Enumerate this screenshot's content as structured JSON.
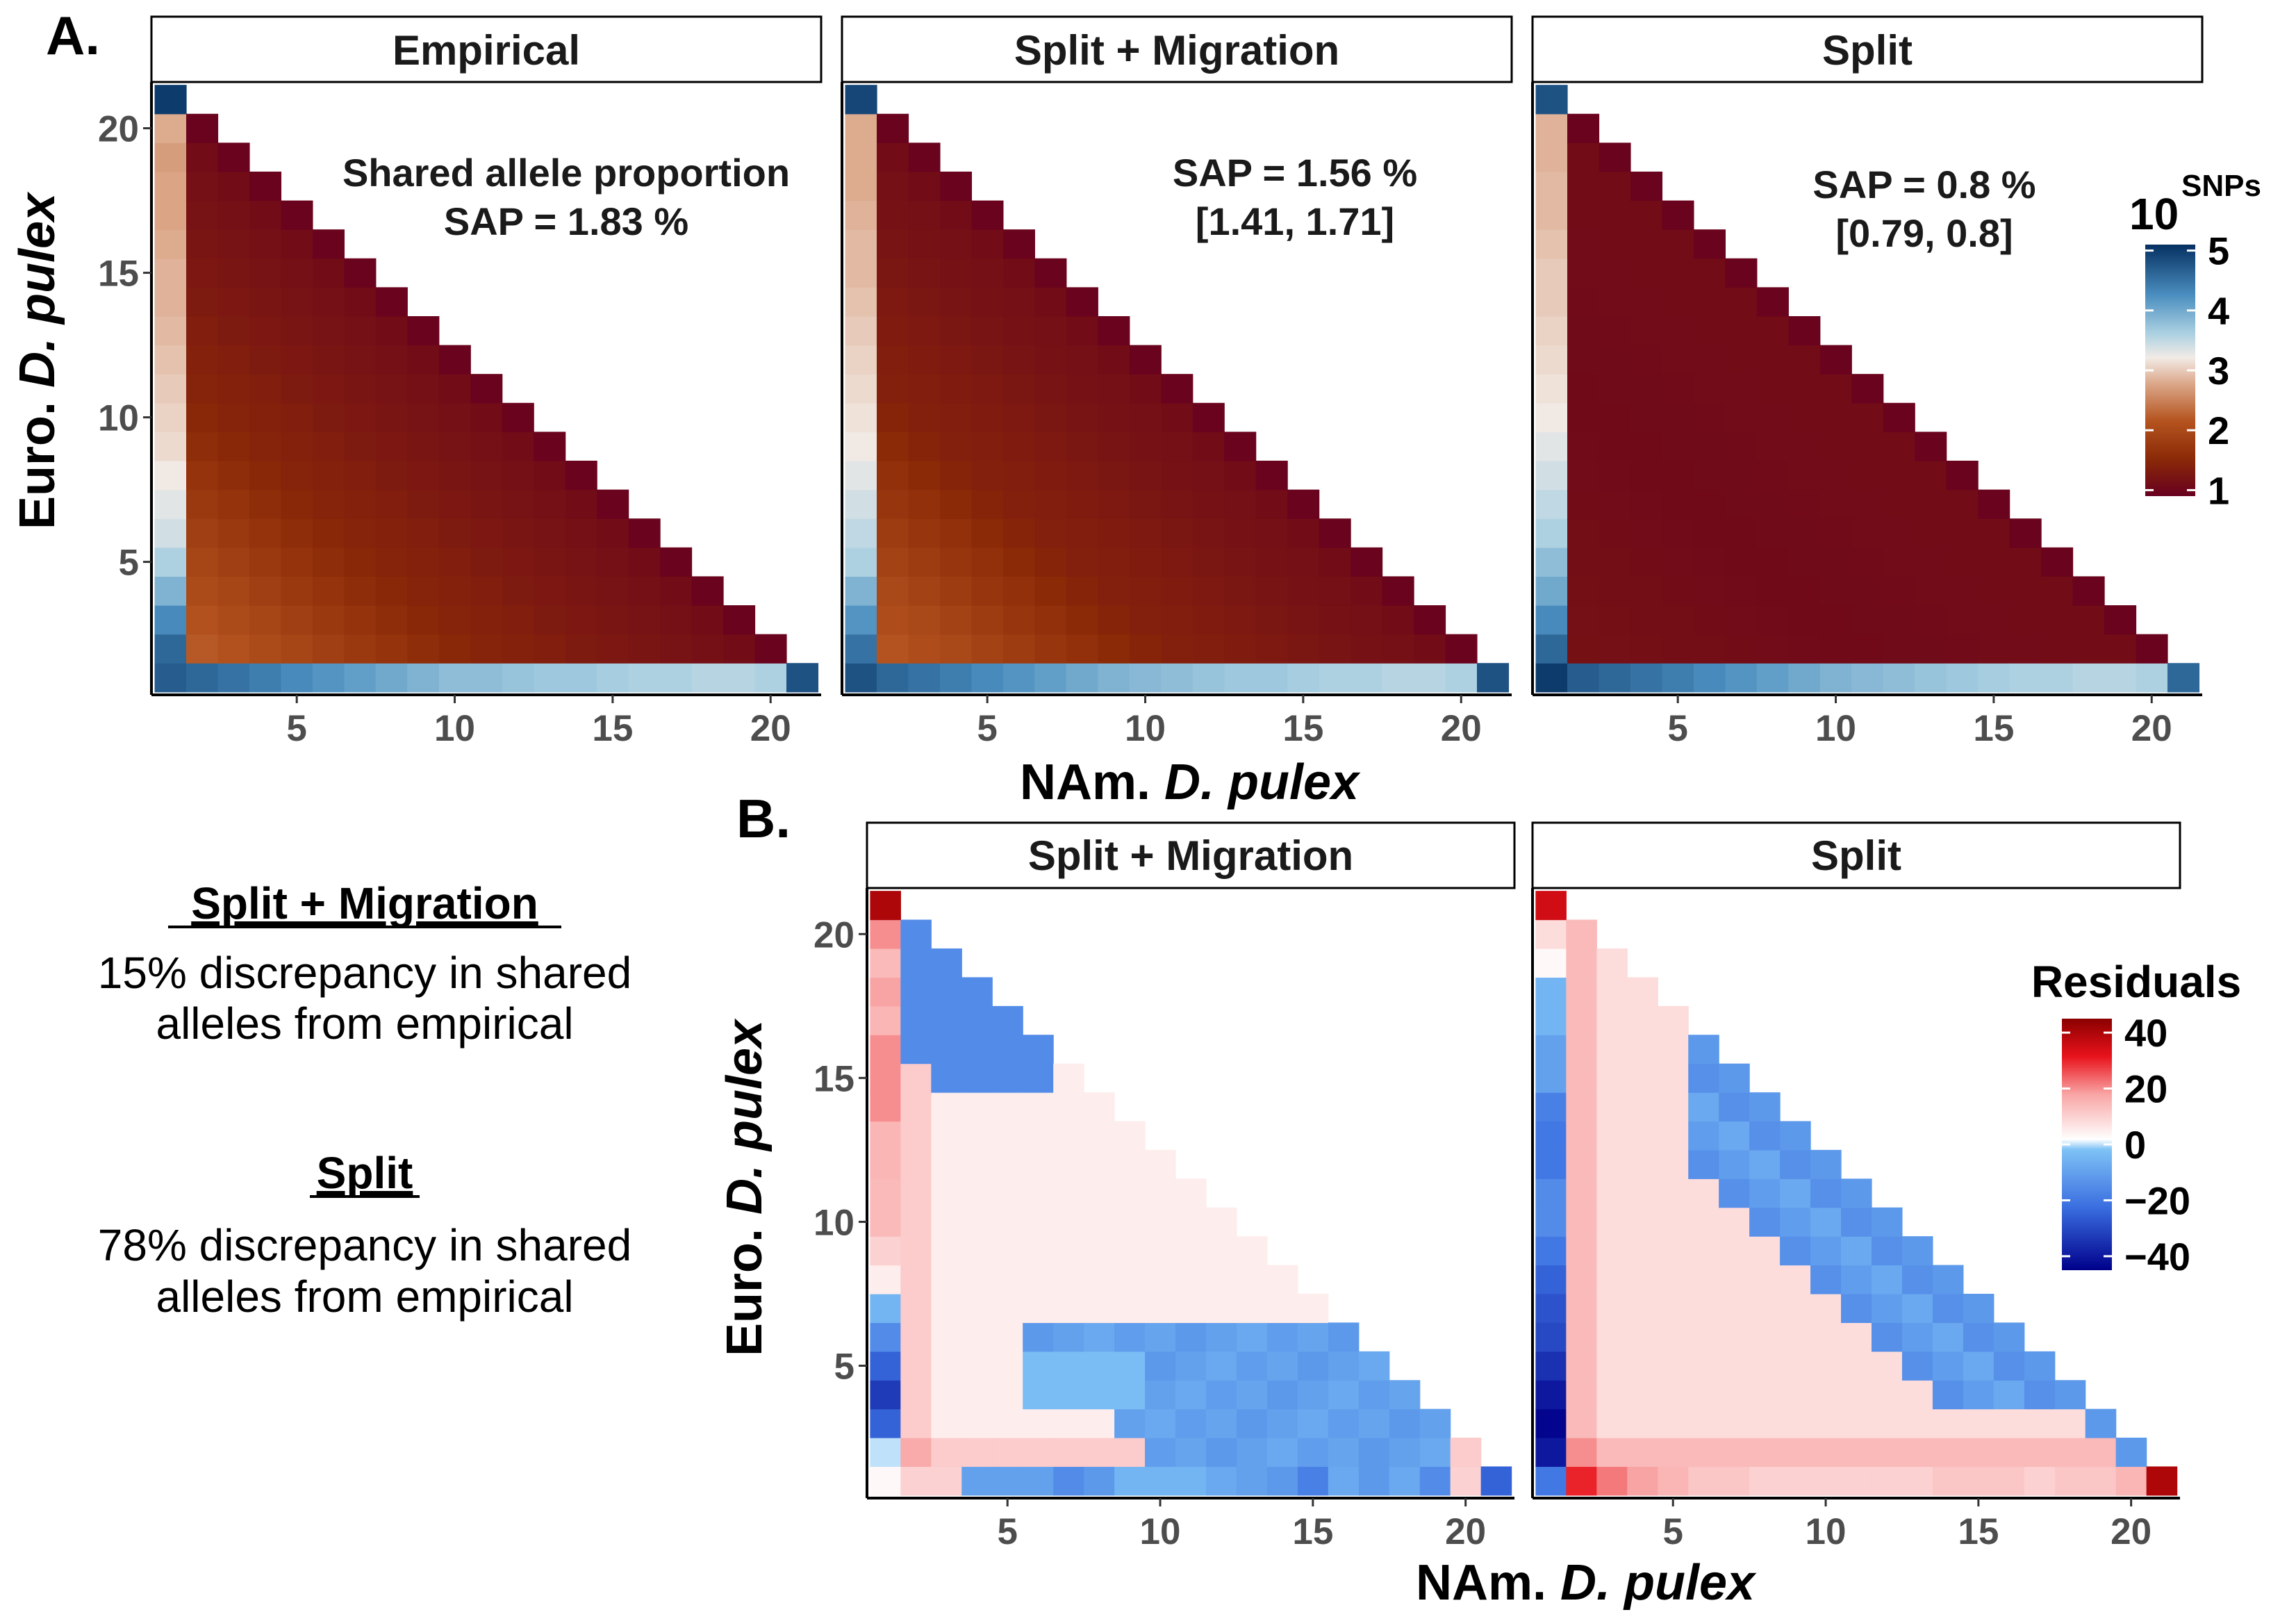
{
  "figure": {
    "panel_a_letter": "A.",
    "panel_b_letter": "B.",
    "x_axis_prefix": "NAm. ",
    "x_axis_italic": "D. pulex",
    "y_axis_prefix": "Euro. ",
    "y_axis_italic": "D. pulex",
    "legend_snp_base": "10",
    "legend_snp_sup": "SNPs",
    "legend_residuals_title": "Residuals"
  },
  "side_text": {
    "block1_heading": "Split + Migration",
    "block1_line1": "15% discrepancy in shared",
    "block1_line2": "alleles from empirical",
    "block2_heading": "Split",
    "block2_line1": "78% discrepancy in shared",
    "block2_line2": "alleles from empirical"
  },
  "chart_data": [
    {
      "type": "heatmap",
      "panel": "A",
      "facet": "Empirical",
      "annotation": [
        "Shared allele proportion",
        "SAP = 1.83 %"
      ],
      "x_range": [
        1,
        21
      ],
      "y_range": [
        1,
        21
      ],
      "x_ticks": [
        5,
        10,
        15,
        20
      ],
      "y_ticks": [
        5,
        10,
        15,
        20
      ],
      "color_scale": "log10 SNP count",
      "values_note": "anchors of log10(SNPs) per cell",
      "col_y1": [
        4.7,
        4.6,
        4.3,
        3.9,
        3.6,
        3.4,
        3.3,
        3.2,
        3.1,
        3.05,
        3.0,
        2.95,
        2.9,
        2.85,
        2.85,
        2.8,
        2.75,
        2.75,
        2.7,
        2.8,
        5.0
      ],
      "row_x1": [
        5.0,
        4.6,
        4.5,
        4.4,
        4.3,
        4.2,
        4.1,
        4.0,
        3.9,
        3.8,
        3.8,
        3.75,
        3.7,
        3.7,
        3.65,
        3.6,
        3.6,
        3.55,
        3.55,
        3.6,
        4.8
      ],
      "interior": {
        "near_axes": 2.2,
        "mid": 1.45,
        "diagonal": 0.95
      }
    },
    {
      "type": "heatmap",
      "panel": "A",
      "facet": "Split + Migration",
      "annotation": [
        "SAP = 1.56 %",
        "[1.41, 1.71]"
      ],
      "x_range": [
        1,
        21
      ],
      "y_range": [
        1,
        21
      ],
      "x_ticks": [
        5,
        10,
        15,
        20
      ],
      "y_ticks": [
        5,
        10,
        15,
        20
      ],
      "color_scale": "log10 SNP count",
      "col_y1": [
        4.8,
        4.5,
        4.2,
        3.9,
        3.6,
        3.5,
        3.4,
        3.3,
        3.2,
        3.15,
        3.1,
        3.05,
        3.0,
        2.95,
        2.9,
        2.9,
        2.85,
        2.8,
        2.8,
        2.8,
        4.9
      ],
      "row_x1": [
        5.0,
        4.6,
        4.5,
        4.4,
        4.3,
        4.2,
        4.1,
        4.0,
        3.9,
        3.85,
        3.8,
        3.75,
        3.7,
        3.7,
        3.65,
        3.6,
        3.6,
        3.55,
        3.55,
        3.6,
        4.8
      ],
      "interior": {
        "near_axes": 2.15,
        "mid": 1.4,
        "diagonal": 0.95
      }
    },
    {
      "type": "heatmap",
      "panel": "A",
      "facet": "Split",
      "annotation": [
        "SAP = 0.8 %",
        "[0.79, 0.8]"
      ],
      "x_range": [
        1,
        21
      ],
      "y_range": [
        1,
        21
      ],
      "x_ticks": [
        5,
        10,
        15,
        20
      ],
      "y_ticks": [
        5,
        10,
        15,
        20
      ],
      "color_scale": "log10 SNP count",
      "col_y1": [
        5.0,
        4.6,
        4.3,
        4.0,
        3.8,
        3.6,
        3.5,
        3.4,
        3.3,
        3.2,
        3.15,
        3.1,
        3.05,
        3.0,
        3.0,
        2.95,
        2.9,
        2.9,
        2.85,
        2.85,
        4.8
      ],
      "row_x1": [
        5.0,
        4.7,
        4.6,
        4.5,
        4.4,
        4.3,
        4.2,
        4.1,
        4.0,
        3.9,
        3.85,
        3.8,
        3.75,
        3.7,
        3.65,
        3.6,
        3.6,
        3.55,
        3.55,
        3.6,
        4.6
      ],
      "interior": {
        "near_axes": 1.15,
        "mid": 1.05,
        "diagonal": 0.95
      }
    },
    {
      "type": "heatmap",
      "panel": "B",
      "facet": "Split + Migration",
      "x_range": [
        1,
        21
      ],
      "y_range": [
        1,
        21
      ],
      "x_ticks": [
        5,
        10,
        15,
        20
      ],
      "y_ticks": [
        5,
        10,
        15,
        20
      ],
      "color_scale": "residuals",
      "col_y1": [
        25,
        10,
        10,
        -10,
        -10,
        -10,
        -15,
        -12,
        -5,
        -5,
        -5,
        -8,
        -10,
        -12,
        -18,
        -8,
        -12,
        -8,
        -15,
        10,
        -25
      ],
      "x1_row": [
        3,
        0,
        -25,
        -33,
        -25,
        -15,
        -5,
        5,
        10,
        14,
        14,
        15,
        15,
        20,
        20,
        20,
        15,
        18,
        14,
        20,
        40
      ],
      "interior_default": 5,
      "region_blue_upper": {
        "x": [
          2,
          6
        ],
        "y": [
          15,
          20
        ],
        "value": -15
      },
      "region_blue_lower": {
        "x": [
          6,
          19
        ],
        "y": [
          2,
          6
        ],
        "value": -12
      }
    },
    {
      "type": "heatmap",
      "panel": "B",
      "facet": "Split",
      "x_range": [
        1,
        21
      ],
      "y_range": [
        1,
        21
      ],
      "x_ticks": [
        5,
        10,
        15,
        20
      ],
      "y_ticks": [
        5,
        10,
        15,
        20
      ],
      "color_scale": "residuals",
      "col_y1": [
        45,
        30,
        22,
        18,
        15,
        12,
        12,
        10,
        10,
        10,
        10,
        10,
        10,
        12,
        12,
        12,
        10,
        12,
        12,
        15,
        40
      ],
      "x1_row": [
        -20,
        -40,
        -44,
        -40,
        -35,
        -30,
        -28,
        -25,
        -20,
        -15,
        -15,
        -20,
        -20,
        -18,
        -10,
        -10,
        -5,
        -5,
        3,
        8,
        35
      ],
      "interior_default": 8,
      "region_blue_diag": {
        "cells": "near-diagonal band x 6-16",
        "value": -15
      }
    }
  ],
  "legend_snp": {
    "ticks": [
      "5",
      "4",
      "3",
      "2",
      "1"
    ],
    "range": [
      0.9,
      5.1
    ]
  },
  "legend_res": {
    "ticks": [
      "40",
      "20",
      "0",
      "−20",
      "−40"
    ],
    "range": [
      -45,
      45
    ]
  }
}
